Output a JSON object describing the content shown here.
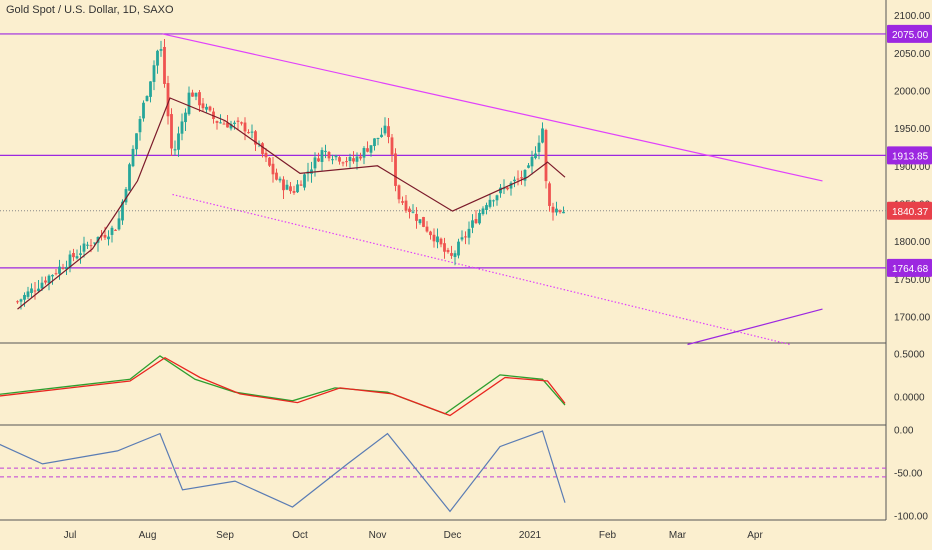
{
  "title": "Gold Spot / U.S. Dollar, 1D, SAXO",
  "colors": {
    "background": "#fbefcf",
    "up_candle": "#26a69a",
    "down_candle": "#ef5350",
    "ema": "#7b1a2a",
    "hline": "#9c27e0",
    "trend": "#e040fb",
    "macd": "#2e9e2e",
    "signal": "#e8251f",
    "rsi": "#5a7cb4",
    "rsi_band": "#c03fd8",
    "badge_purple": "#9c27e0",
    "badge_red": "#e8404a"
  },
  "chart_data": [
    {
      "type": "candlestick",
      "title": "Gold Spot / U.S. Dollar, 1D, SAXO",
      "x_labels": [
        "Jul",
        "Aug",
        "Sep",
        "Oct",
        "Nov",
        "Dec",
        "2021",
        "Feb",
        "Mar",
        "Apr"
      ],
      "y_ticks": [
        1700,
        1750,
        1800,
        1850,
        1900,
        1950,
        2000,
        2050,
        2100
      ],
      "ylim": [
        1665,
        2120
      ],
      "grid": false,
      "close_series": [
        {
          "date": "2020-06-10",
          "value": 1720
        },
        {
          "date": "2020-06-25",
          "value": 1760
        },
        {
          "date": "2020-07-10",
          "value": 1800
        },
        {
          "date": "2020-07-20",
          "value": 1820
        },
        {
          "date": "2020-07-28",
          "value": 1950
        },
        {
          "date": "2020-08-06",
          "value": 2065
        },
        {
          "date": "2020-08-11",
          "value": 1910
        },
        {
          "date": "2020-08-18",
          "value": 2000
        },
        {
          "date": "2020-08-28",
          "value": 1960
        },
        {
          "date": "2020-09-10",
          "value": 1950
        },
        {
          "date": "2020-09-22",
          "value": 1880
        },
        {
          "date": "2020-09-28",
          "value": 1865
        },
        {
          "date": "2020-10-10",
          "value": 1920
        },
        {
          "date": "2020-10-22",
          "value": 1905
        },
        {
          "date": "2020-11-05",
          "value": 1950
        },
        {
          "date": "2020-11-09",
          "value": 1860
        },
        {
          "date": "2020-11-24",
          "value": 1805
        },
        {
          "date": "2020-11-30",
          "value": 1775
        },
        {
          "date": "2020-12-15",
          "value": 1855
        },
        {
          "date": "2020-12-31",
          "value": 1890
        },
        {
          "date": "2021-01-06",
          "value": 1950
        },
        {
          "date": "2021-01-08",
          "value": 1845
        },
        {
          "date": "2021-01-15",
          "value": 1840
        }
      ],
      "ema_series": [
        {
          "date": "2020-06-10",
          "value": 1710
        },
        {
          "date": "2020-07-10",
          "value": 1790
        },
        {
          "date": "2020-07-28",
          "value": 1880
        },
        {
          "date": "2020-08-10",
          "value": 1990
        },
        {
          "date": "2020-09-01",
          "value": 1960
        },
        {
          "date": "2020-10-01",
          "value": 1890
        },
        {
          "date": "2020-11-01",
          "value": 1900
        },
        {
          "date": "2020-12-01",
          "value": 1840
        },
        {
          "date": "2020-12-31",
          "value": 1885
        },
        {
          "date": "2021-01-08",
          "value": 1905
        },
        {
          "date": "2021-01-15",
          "value": 1885
        }
      ],
      "horizontal_lines": [
        {
          "value": 2075.0,
          "label": "2075.00"
        },
        {
          "value": 1913.85,
          "label": "1913.85"
        },
        {
          "value": 1764.68,
          "label": "1764.68"
        }
      ],
      "current_price": {
        "value": 1840.37,
        "label": "1840.37"
      },
      "trendlines": [
        {
          "start": {
            "date": "2020-08-07",
            "value": 2075
          },
          "end": {
            "date": "2021-04-28",
            "value": 1880
          },
          "style": "solid"
        },
        {
          "start": {
            "date": "2020-08-11",
            "value": 1862
          },
          "end": {
            "date": "2021-04-15",
            "value": 1663
          },
          "style": "dotted"
        },
        {
          "start": {
            "date": "2021-03-05",
            "value": 1663
          },
          "end": {
            "date": "2021-04-28",
            "value": 1710
          },
          "style": "solid"
        }
      ]
    },
    {
      "type": "line",
      "y_ticks": [
        "0.5000",
        "0.0000"
      ],
      "ylim": [
        -0.33,
        0.62
      ],
      "series": [
        {
          "values": [
            {
              "date": "2020-06-01",
              "value": 0.02
            },
            {
              "date": "2020-07-01",
              "value": 0.12
            },
            {
              "date": "2020-07-25",
              "value": 0.2
            },
            {
              "date": "2020-08-06",
              "value": 0.47
            },
            {
              "date": "2020-08-20",
              "value": 0.2
            },
            {
              "date": "2020-09-05",
              "value": 0.05
            },
            {
              "date": "2020-09-28",
              "value": -0.05
            },
            {
              "date": "2020-10-15",
              "value": 0.1
            },
            {
              "date": "2020-11-05",
              "value": 0.05
            },
            {
              "date": "2020-11-28",
              "value": -0.2
            },
            {
              "date": "2020-12-20",
              "value": 0.25
            },
            {
              "date": "2021-01-06",
              "value": 0.2
            },
            {
              "date": "2021-01-15",
              "value": -0.1
            }
          ]
        },
        {
          "values": [
            {
              "date": "2020-06-01",
              "value": 0.0
            },
            {
              "date": "2020-07-01",
              "value": 0.1
            },
            {
              "date": "2020-07-25",
              "value": 0.18
            },
            {
              "date": "2020-08-08",
              "value": 0.45
            },
            {
              "date": "2020-08-22",
              "value": 0.22
            },
            {
              "date": "2020-09-07",
              "value": 0.03
            },
            {
              "date": "2020-09-30",
              "value": -0.07
            },
            {
              "date": "2020-10-17",
              "value": 0.1
            },
            {
              "date": "2020-11-07",
              "value": 0.03
            },
            {
              "date": "2020-11-30",
              "value": -0.22
            },
            {
              "date": "2020-12-22",
              "value": 0.22
            },
            {
              "date": "2021-01-08",
              "value": 0.18
            },
            {
              "date": "2021-01-15",
              "value": -0.08
            }
          ]
        }
      ]
    },
    {
      "type": "line",
      "y_ticks": [
        "0.00",
        "-50.00",
        "-100.00"
      ],
      "ylim": [
        -105,
        5
      ],
      "bands": [
        -45,
        -55
      ],
      "series": [
        {
          "values": [
            {
              "date": "2020-06-01",
              "value": -15
            },
            {
              "date": "2020-06-20",
              "value": -40
            },
            {
              "date": "2020-07-20",
              "value": -25
            },
            {
              "date": "2020-08-06",
              "value": -5
            },
            {
              "date": "2020-08-15",
              "value": -70
            },
            {
              "date": "2020-09-05",
              "value": -60
            },
            {
              "date": "2020-09-28",
              "value": -90
            },
            {
              "date": "2020-10-20",
              "value": -40
            },
            {
              "date": "2020-11-05",
              "value": -5
            },
            {
              "date": "2020-11-30",
              "value": -95
            },
            {
              "date": "2020-12-20",
              "value": -20
            },
            {
              "date": "2021-01-06",
              "value": -2
            },
            {
              "date": "2021-01-15",
              "value": -85
            }
          ]
        }
      ]
    }
  ]
}
